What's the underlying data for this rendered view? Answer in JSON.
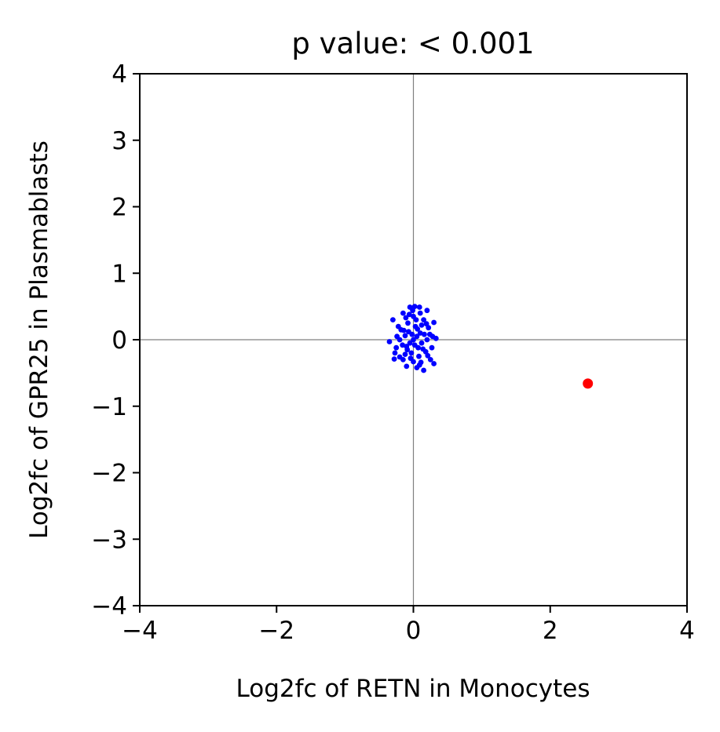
{
  "chart_data": {
    "type": "scatter",
    "title": "p value: < 0.001",
    "xlabel": "Log2fc of RETN in Monocytes",
    "ylabel": "Log2fc of GPR25 in Plasmablasts",
    "xlim": [
      -4,
      4
    ],
    "ylim": [
      -4,
      4
    ],
    "xticks": [
      -4,
      -2,
      0,
      2,
      4
    ],
    "yticks": [
      -4,
      -3,
      -2,
      -1,
      0,
      1,
      2,
      3,
      4
    ],
    "xtick_labels": [
      "−4",
      "−2",
      "0",
      "2",
      "4"
    ],
    "ytick_labels": [
      "−4",
      "−3",
      "−2",
      "−1",
      "0",
      "1",
      "2",
      "3",
      "4"
    ],
    "reference_lines": {
      "x": 0,
      "y": 0,
      "color": "#808080"
    },
    "grid": false,
    "legend": "none",
    "series": [
      {
        "color": "#0000ff",
        "points": [
          [
            -0.3,
            0.3
          ],
          [
            -0.28,
            -0.29
          ],
          [
            -0.35,
            -0.03
          ],
          [
            0.3,
            -0.36
          ],
          [
            0.3,
            0.26
          ],
          [
            0.33,
            0.02
          ],
          [
            0.15,
            -0.46
          ],
          [
            0.02,
            0.5
          ],
          [
            -0.05,
            0.49
          ],
          [
            0.09,
            0.49
          ],
          [
            0.2,
            0.44
          ],
          [
            -0.15,
            0.4
          ],
          [
            0.25,
            -0.3
          ],
          [
            -0.2,
            -0.26
          ],
          [
            -0.1,
            -0.4
          ],
          [
            0.05,
            -0.42
          ],
          [
            -0.22,
            0.2
          ],
          [
            0.22,
            0.18
          ],
          [
            -0.25,
            -0.12
          ],
          [
            0.27,
            -0.12
          ],
          [
            0.0,
            0.0
          ],
          [
            0.05,
            0.05
          ],
          [
            -0.05,
            -0.05
          ],
          [
            0.1,
            0.1
          ],
          [
            -0.1,
            -0.1
          ],
          [
            0.12,
            -0.05
          ],
          [
            -0.12,
            0.06
          ],
          [
            0.03,
            0.2
          ],
          [
            -0.03,
            -0.2
          ],
          [
            0.08,
            -0.25
          ],
          [
            -0.08,
            0.25
          ],
          [
            0.15,
            0.3
          ],
          [
            -0.15,
            -0.3
          ],
          [
            0.18,
            -0.18
          ],
          [
            -0.18,
            0.15
          ],
          [
            0.0,
            0.35
          ],
          [
            0.0,
            -0.33
          ],
          [
            0.2,
            0.0
          ],
          [
            -0.2,
            0.0
          ],
          [
            0.1,
            0.4
          ],
          [
            -0.06,
            0.38
          ],
          [
            0.12,
            0.22
          ],
          [
            -0.12,
            -0.22
          ],
          [
            0.07,
            -0.12
          ],
          [
            -0.07,
            0.12
          ],
          [
            0.16,
            0.08
          ],
          [
            -0.16,
            -0.08
          ],
          [
            0.04,
            0.3
          ],
          [
            -0.04,
            -0.28
          ],
          [
            0.24,
            0.08
          ],
          [
            -0.24,
            0.05
          ],
          [
            0.11,
            -0.34
          ],
          [
            -0.11,
            0.33
          ],
          [
            0.02,
            -0.08
          ],
          [
            -0.02,
            0.08
          ],
          [
            0.14,
            -0.14
          ],
          [
            -0.14,
            0.14
          ],
          [
            0.06,
            0.16
          ],
          [
            -0.09,
            -0.15
          ],
          [
            0.19,
            0.24
          ],
          [
            -0.01,
            0.44
          ],
          [
            0.09,
            -0.38
          ],
          [
            0.28,
            0.05
          ],
          [
            -0.27,
            -0.2
          ],
          [
            0.21,
            -0.24
          ]
        ]
      },
      {
        "color": "#ff0000",
        "points": [
          [
            2.55,
            -0.66
          ]
        ]
      }
    ]
  }
}
